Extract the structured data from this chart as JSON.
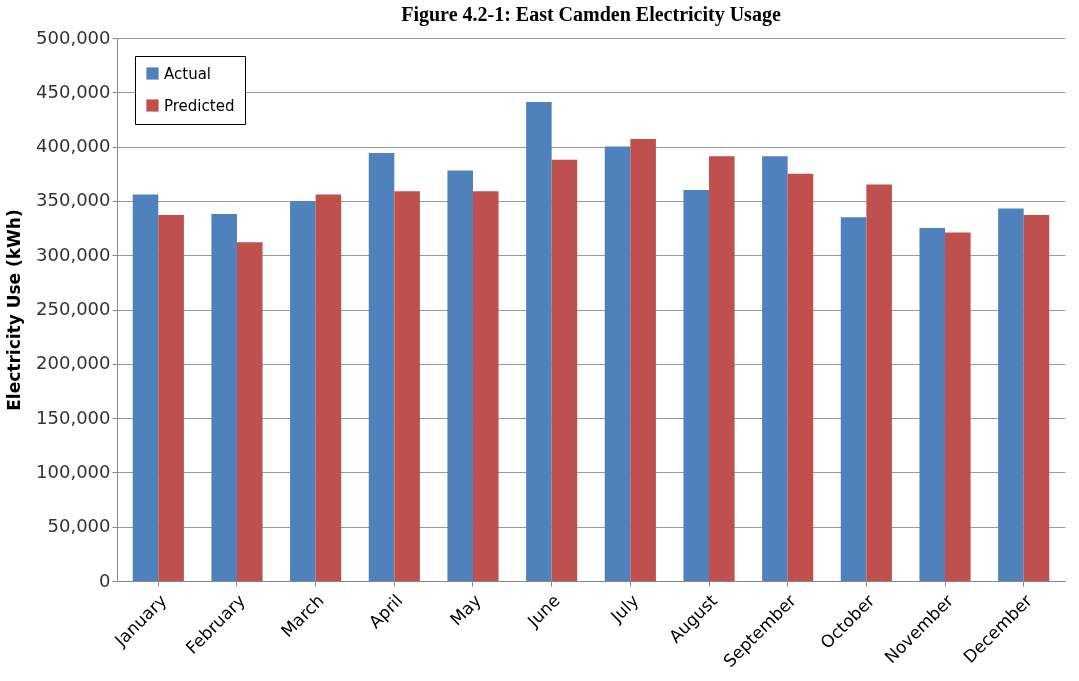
{
  "chart_data": {
    "type": "bar",
    "title": "Figure 4.2-1: East Camden Electricity Usage",
    "ylabel": "Electricity Use (kWh)",
    "categories": [
      "January",
      "February",
      "March",
      "April",
      "May",
      "June",
      "July",
      "August",
      "September",
      "October",
      "November",
      "December"
    ],
    "series": [
      {
        "name": "Actual",
        "color": "#4f81bd",
        "values": [
          356000,
          338000,
          350000,
          394000,
          378000,
          441000,
          400000,
          360000,
          391000,
          335000,
          325000,
          343000
        ]
      },
      {
        "name": "Predicted",
        "color": "#c0504d",
        "values": [
          337000,
          312000,
          356000,
          359000,
          359000,
          388000,
          407000,
          391000,
          375000,
          365000,
          321000,
          337000
        ]
      }
    ],
    "ylim": [
      0,
      500000
    ],
    "yticks": [
      0,
      {
        "value": 50000,
        "label": "50,000"
      },
      {
        "value": 100000,
        "label": "100,000"
      },
      {
        "value": 150000,
        "label": "150,000"
      },
      {
        "value": 200000,
        "label": "200,000"
      },
      {
        "value": 250000,
        "label": "250,000"
      },
      {
        "value": 300000,
        "label": "300,000"
      },
      {
        "value": 350000,
        "label": "350,000"
      },
      {
        "value": 400000,
        "label": "400,000"
      },
      {
        "value": 450000,
        "label": "450,000"
      },
      {
        "value": 500000,
        "label": "500,000"
      }
    ],
    "grid": "y",
    "legend": "top left"
  }
}
